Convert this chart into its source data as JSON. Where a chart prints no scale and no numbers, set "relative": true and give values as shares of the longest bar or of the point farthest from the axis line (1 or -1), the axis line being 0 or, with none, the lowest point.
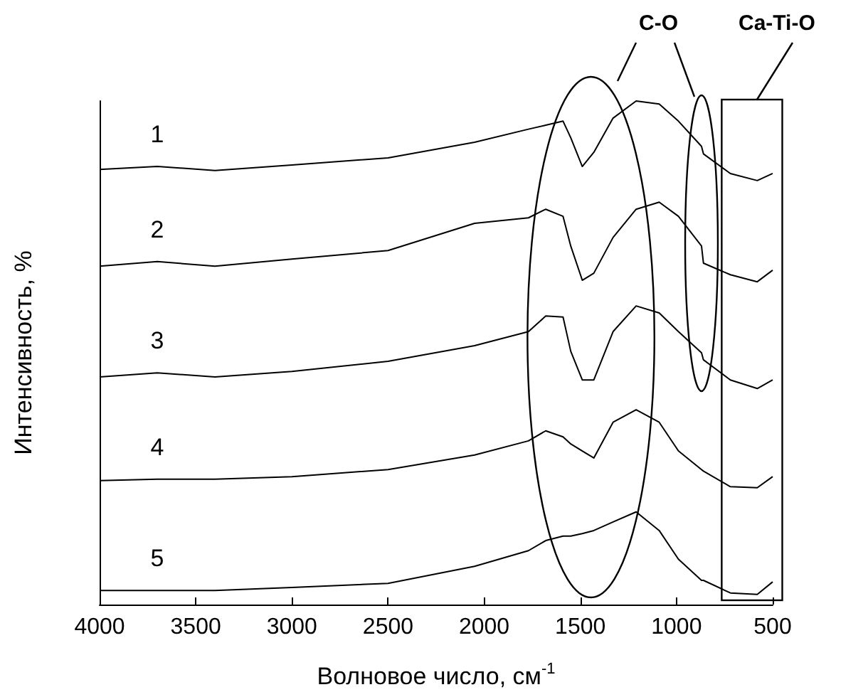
{
  "chart_data": {
    "type": "line",
    "relative": true,
    "xlabel": "Волновое число, см$^{-1}$",
    "ylabel": "Интенсивность, %",
    "x": [
      4000,
      3700,
      3400,
      3000,
      2500,
      2050,
      1770,
      1680,
      1590,
      1550,
      1490,
      1430,
      1330,
      1210,
      1090,
      990,
      870,
      860,
      720,
      580,
      500
    ],
    "xlim": [
      4000,
      500
    ],
    "xticks": [
      4000,
      3500,
      3000,
      2500,
      2000,
      1500,
      1000,
      500
    ],
    "annotations": [
      "C-O",
      "Ca-Ti-O"
    ],
    "marker": "none",
    "line_style": "solid",
    "grid": false,
    "legend": false,
    "series": [
      {
        "name": "1",
        "color": "#000000",
        "values": [
          0.864,
          0.87,
          0.862,
          0.873,
          0.887,
          0.918,
          0.944,
          0.952,
          0.96,
          0.927,
          0.87,
          0.898,
          0.966,
          1,
          0.994,
          0.96,
          0.91,
          0.895,
          0.856,
          0.842,
          0.856
        ]
      },
      {
        "name": "2",
        "color": "#000000",
        "values": [
          0.672,
          0.681,
          0.672,
          0.686,
          0.703,
          0.757,
          0.768,
          0.785,
          0.771,
          0.712,
          0.644,
          0.658,
          0.729,
          0.785,
          0.799,
          0.771,
          0.712,
          0.678,
          0.655,
          0.641,
          0.664
        ]
      },
      {
        "name": "3",
        "color": "#000000",
        "values": [
          0.452,
          0.46,
          0.452,
          0.463,
          0.483,
          0.514,
          0.542,
          0.573,
          0.571,
          0.503,
          0.446,
          0.446,
          0.542,
          0.593,
          0.579,
          0.542,
          0.5,
          0.486,
          0.446,
          0.429,
          0.446
        ]
      },
      {
        "name": "4",
        "color": "#000000",
        "values": [
          0.246,
          0.249,
          0.249,
          0.254,
          0.268,
          0.297,
          0.325,
          0.345,
          0.333,
          0.319,
          0.305,
          0.291,
          0.362,
          0.387,
          0.362,
          0.305,
          0.268,
          0.265,
          0.234,
          0.232,
          0.254
        ]
      },
      {
        "name": "5",
        "color": "#000000",
        "values": [
          0.028,
          0.028,
          0.028,
          0.034,
          0.042,
          0.076,
          0.107,
          0.127,
          0.136,
          0.136,
          0.141,
          0.147,
          0.164,
          0.184,
          0.147,
          0.09,
          0.048,
          0.048,
          0.023,
          0.02,
          0.045
        ]
      }
    ]
  }
}
